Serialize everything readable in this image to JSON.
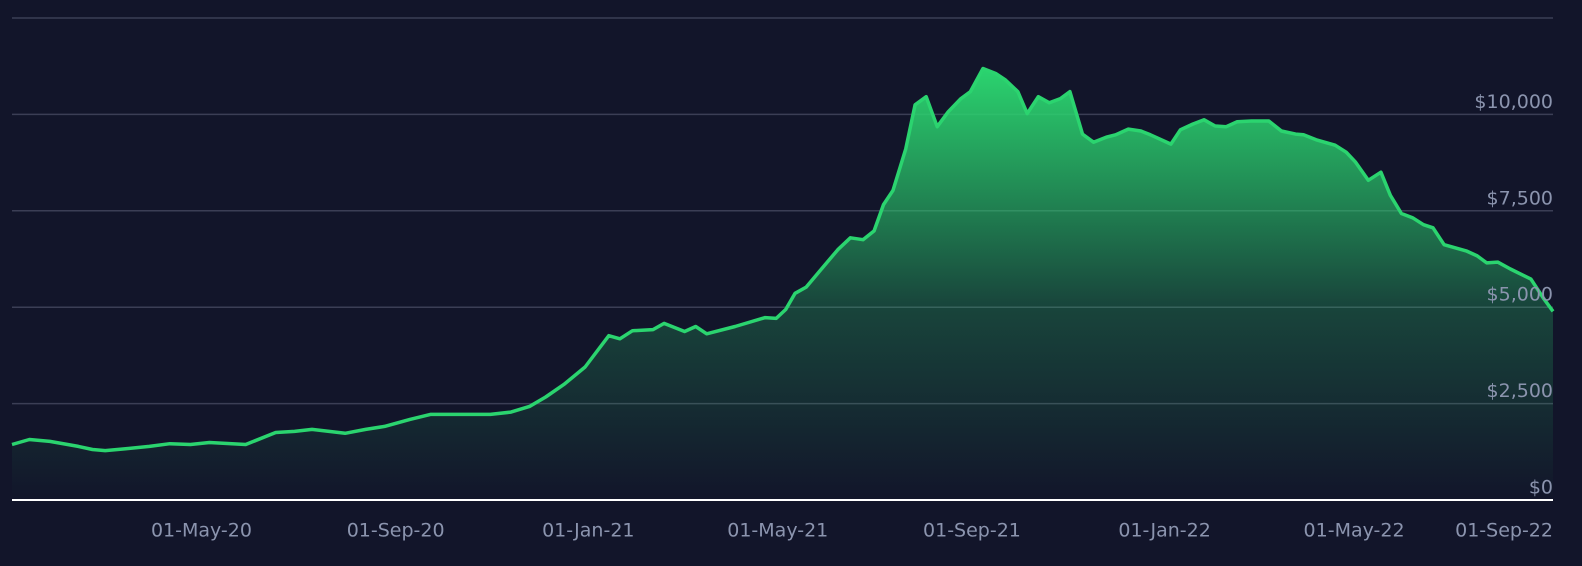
{
  "chart_data": {
    "type": "area",
    "color": "#2bd46f",
    "xlim": [
      "2020-01-02",
      "2022-09-04"
    ],
    "ylim": [
      0,
      12500
    ],
    "grid": true,
    "yticks": [
      {
        "value": 0,
        "label": "$0"
      },
      {
        "value": 2500,
        "label": "$2,500"
      },
      {
        "value": 5000,
        "label": "$5,000"
      },
      {
        "value": 7500,
        "label": "$7,500"
      },
      {
        "value": 10000,
        "label": "$10,000"
      }
    ],
    "xticks": [
      {
        "value": "2020-05-01",
        "label": "01-May-20"
      },
      {
        "value": "2020-09-01",
        "label": "01-Sep-20"
      },
      {
        "value": "2021-01-01",
        "label": "01-Jan-21"
      },
      {
        "value": "2021-05-01",
        "label": "01-May-21"
      },
      {
        "value": "2021-09-01",
        "label": "01-Sep-21"
      },
      {
        "value": "2022-01-01",
        "label": "01-Jan-22"
      },
      {
        "value": "2022-05-01",
        "label": "01-May-22"
      },
      {
        "value": "2022-09-01",
        "label": "01-Sep-22"
      }
    ],
    "x": [
      "2020-01-02",
      "2020-01-13",
      "2020-01-26",
      "2020-02-13",
      "2020-02-22",
      "2020-03-01",
      "2020-03-14",
      "2020-03-29",
      "2020-04-11",
      "2020-04-24",
      "2020-05-06",
      "2020-05-29",
      "2020-06-17",
      "2020-06-29",
      "2020-07-10",
      "2020-07-31",
      "2020-08-13",
      "2020-08-25",
      "2020-09-10",
      "2020-09-23",
      "2020-10-31",
      "2020-11-13",
      "2020-11-25",
      "2020-12-05",
      "2020-12-17",
      "2020-12-30",
      "2021-01-14",
      "2021-01-21",
      "2021-01-29",
      "2021-02-11",
      "2021-02-18",
      "2021-03-03",
      "2021-03-10",
      "2021-03-17",
      "2021-04-04",
      "2021-04-23",
      "2021-04-30",
      "2021-05-06",
      "2021-05-12",
      "2021-05-19",
      "2021-05-28",
      "2021-06-08",
      "2021-06-16",
      "2021-06-24",
      "2021-07-01",
      "2021-07-07",
      "2021-07-13",
      "2021-07-21",
      "2021-07-27",
      "2021-08-03",
      "2021-08-10",
      "2021-08-17",
      "2021-08-25",
      "2021-08-31",
      "2021-09-08",
      "2021-09-16",
      "2021-09-22",
      "2021-09-30",
      "2021-10-06",
      "2021-10-13",
      "2021-10-20",
      "2021-10-27",
      "2021-11-02",
      "2021-11-10",
      "2021-11-17",
      "2021-11-25",
      "2021-12-01",
      "2021-12-09",
      "2021-12-17",
      "2021-12-23",
      "2022-01-05",
      "2022-01-11",
      "2022-01-19",
      "2022-01-26",
      "2022-02-02",
      "2022-02-09",
      "2022-02-16",
      "2022-02-25",
      "2022-03-08",
      "2022-03-16",
      "2022-03-25",
      "2022-03-30",
      "2022-04-07",
      "2022-04-19",
      "2022-04-26",
      "2022-05-02",
      "2022-05-10",
      "2022-05-18",
      "2022-05-24",
      "2022-05-31",
      "2022-06-07",
      "2022-06-14",
      "2022-06-20",
      "2022-06-27",
      "2022-07-11",
      "2022-07-18",
      "2022-07-24",
      "2022-07-31",
      "2022-08-08",
      "2022-08-21",
      "2022-08-29",
      "2022-09-04"
    ],
    "values": [
      1440,
      1570,
      1520,
      1390,
      1310,
      1280,
      1330,
      1390,
      1460,
      1440,
      1490,
      1440,
      1750,
      1780,
      1830,
      1730,
      1830,
      1910,
      2090,
      2220,
      2220,
      2280,
      2430,
      2670,
      3010,
      3450,
      4260,
      4180,
      4390,
      4420,
      4580,
      4370,
      4500,
      4310,
      4500,
      4730,
      4710,
      4940,
      5360,
      5520,
      5960,
      6490,
      6800,
      6750,
      6980,
      7660,
      8030,
      9100,
      10250,
      10460,
      9680,
      10070,
      10410,
      10590,
      11190,
      11060,
      10900,
      10590,
      10020,
      10460,
      10300,
      10410,
      10590,
      9490,
      9280,
      9410,
      9470,
      9620,
      9570,
      9470,
      9230,
      9600,
      9750,
      9860,
      9700,
      9680,
      9810,
      9830,
      9830,
      9570,
      9490,
      9470,
      9340,
      9200,
      9020,
      8760,
      8290,
      8500,
      7900,
      7430,
      7320,
      7140,
      7060,
      6620,
      6460,
      6330,
      6150,
      6170,
      5990,
      5730,
      5230,
      4890
    ]
  }
}
